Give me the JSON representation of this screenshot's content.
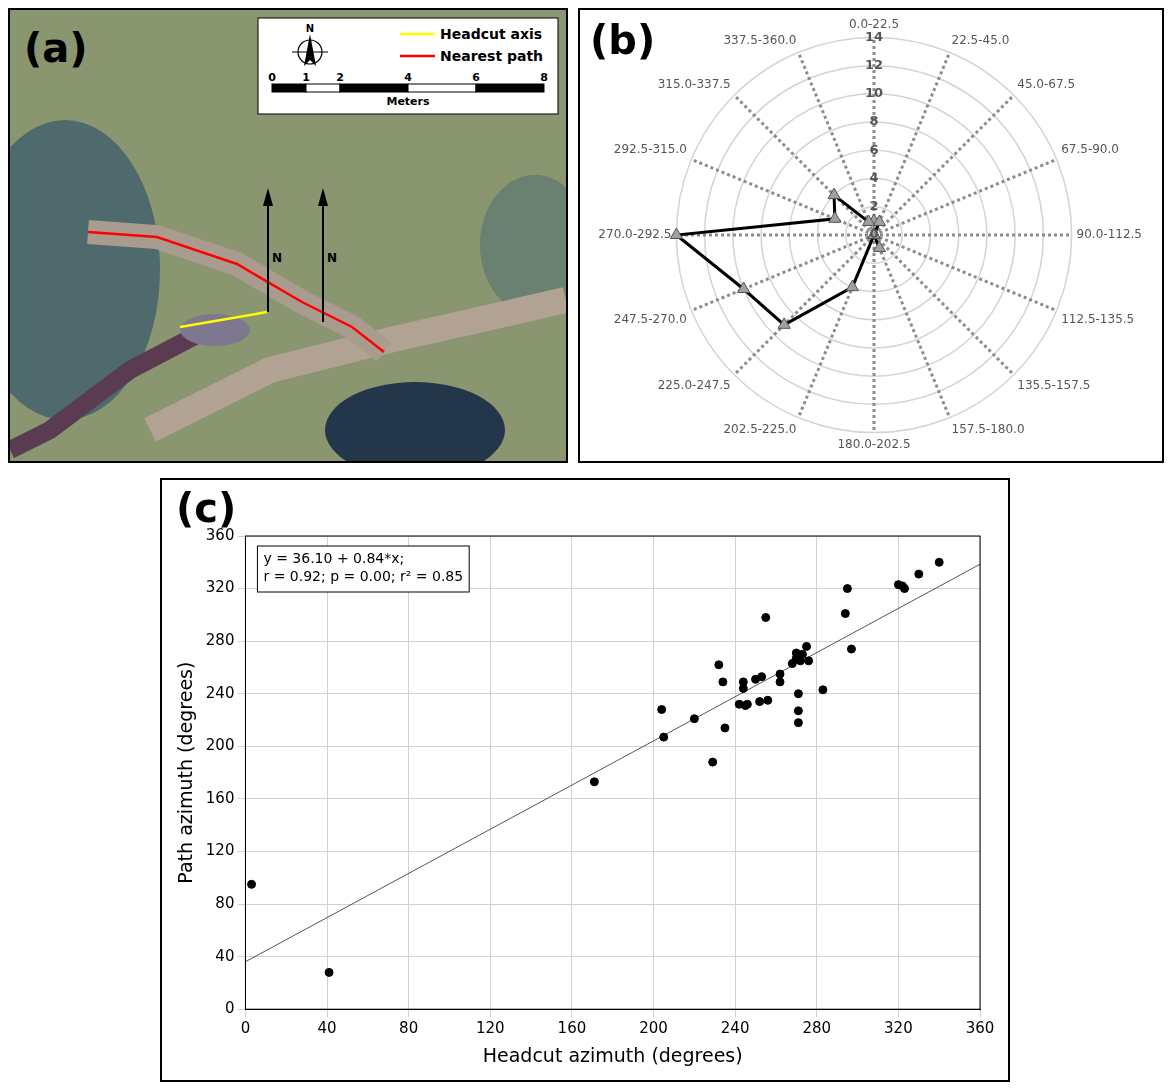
{
  "chart_data": [
    {
      "panel": "(a)",
      "type": "map",
      "north_label": "N",
      "legend": "top-right",
      "series": [
        {
          "name": "Headcut axis",
          "color": "#ffff00"
        },
        {
          "name": "Nearest path",
          "color": "#ff0000"
        }
      ],
      "scale_bar": {
        "ticks": [
          0,
          1,
          2,
          4,
          6,
          8
        ],
        "unit": "Meters"
      }
    },
    {
      "panel": "(b)",
      "type": "radar",
      "categories": [
        "0.0-22.5",
        "22.5-45.0",
        "45.0-67.5",
        "67.5-90.0",
        "90.0-112.5",
        "112.5-135.5",
        "135.5-157.5",
        "157.5-180.0",
        "180.0-202.5",
        "202.5-225.0",
        "225.0-247.5",
        "247.5-270.0",
        "270.0-292.5",
        "292.5-315.0",
        "315.0-337.5",
        "337.5-360.0"
      ],
      "values": [
        1,
        1,
        0,
        0,
        0,
        0,
        0,
        1,
        0,
        4,
        9,
        10,
        14,
        3,
        4,
        1
      ],
      "color": "#000000",
      "marker": "triangle",
      "ylim": [
        0,
        14
      ],
      "yticks": [
        0,
        2,
        4,
        6,
        8,
        10,
        12,
        14
      ],
      "grid": true
    },
    {
      "panel": "(c)",
      "type": "scatter",
      "x": [
        3,
        41,
        171,
        204,
        205,
        220,
        229,
        232,
        234,
        235,
        242,
        244,
        244,
        245,
        246,
        250,
        252,
        253,
        255,
        256,
        262,
        262,
        268,
        270,
        270,
        271,
        271,
        271,
        271,
        272,
        273,
        275,
        276,
        283,
        294,
        295,
        297,
        320,
        322,
        323,
        330,
        340
      ],
      "values": [
        95,
        28,
        173,
        228,
        207,
        221,
        188,
        262,
        249,
        214,
        232,
        249,
        244,
        231,
        232,
        251,
        234,
        253,
        298,
        235,
        255,
        249,
        263,
        271,
        267,
        268,
        240,
        227,
        218,
        265,
        270,
        276,
        265,
        243,
        301,
        320,
        274,
        323,
        322,
        320,
        331,
        340
      ],
      "color": "#000000",
      "marker": "circle",
      "xlim": [
        0,
        360
      ],
      "ylim": [
        0,
        360
      ],
      "xticks": [
        0,
        40,
        80,
        120,
        160,
        200,
        240,
        280,
        320,
        360
      ],
      "yticks": [
        0,
        40,
        80,
        120,
        160,
        200,
        240,
        280,
        320,
        360
      ],
      "xlabel": "Headcut azimuth (degrees)",
      "ylabel": "Path azimuth (degrees)",
      "fit": {
        "intercept": 36.1,
        "slope": 0.84
      },
      "annotations": [
        "y = 36.10 + 0.84*x;",
        "r = 0.92; p = 0.00; r² = 0.85"
      ],
      "grid": true
    }
  ]
}
